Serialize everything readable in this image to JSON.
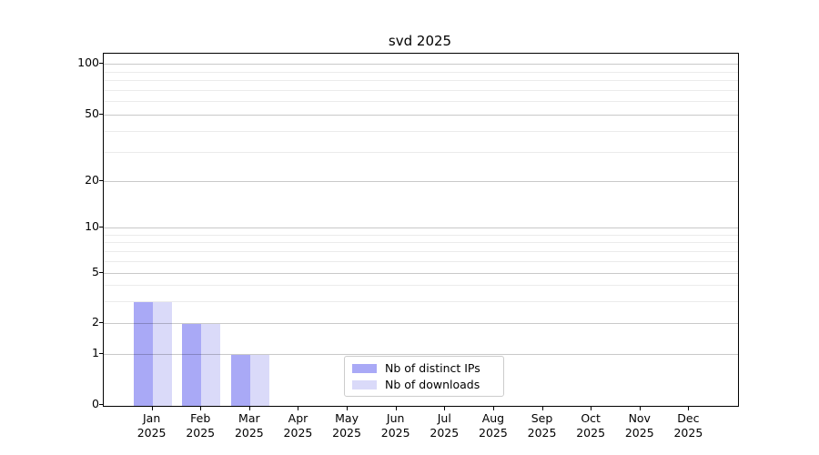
{
  "title": "svd 2025",
  "chart_data": {
    "type": "bar",
    "title": "svd 2025",
    "months": [
      "Jan",
      "Feb",
      "Mar",
      "Apr",
      "May",
      "Jun",
      "Jul",
      "Aug",
      "Sep",
      "Oct",
      "Nov",
      "Dec"
    ],
    "year": "2025",
    "categories": [
      "Jan 2025",
      "Feb 2025",
      "Mar 2025",
      "Apr 2025",
      "May 2025",
      "Jun 2025",
      "Jul 2025",
      "Aug 2025",
      "Sep 2025",
      "Oct 2025",
      "Nov 2025",
      "Dec 2025"
    ],
    "series": [
      {
        "name": "Nb of distinct IPs",
        "color": "#a9a9f6",
        "values": [
          3,
          2,
          1,
          0,
          0,
          0,
          0,
          0,
          0,
          0,
          0,
          0
        ]
      },
      {
        "name": "Nb of downloads",
        "color": "#dadaf9",
        "values": [
          3,
          2,
          1,
          0,
          0,
          0,
          0,
          0,
          0,
          0,
          0,
          0
        ]
      }
    ],
    "yscale": "log",
    "ylim": [
      0,
      110
    ],
    "y_major_ticks": [
      0,
      1,
      2,
      5,
      10,
      20,
      50,
      100
    ],
    "y_minor_ticks": [
      3,
      4,
      6,
      7,
      8,
      9,
      30,
      40,
      60,
      70,
      80,
      90
    ],
    "xlabel": "",
    "ylabel": "",
    "grid": true,
    "legend_position": "lower center"
  }
}
